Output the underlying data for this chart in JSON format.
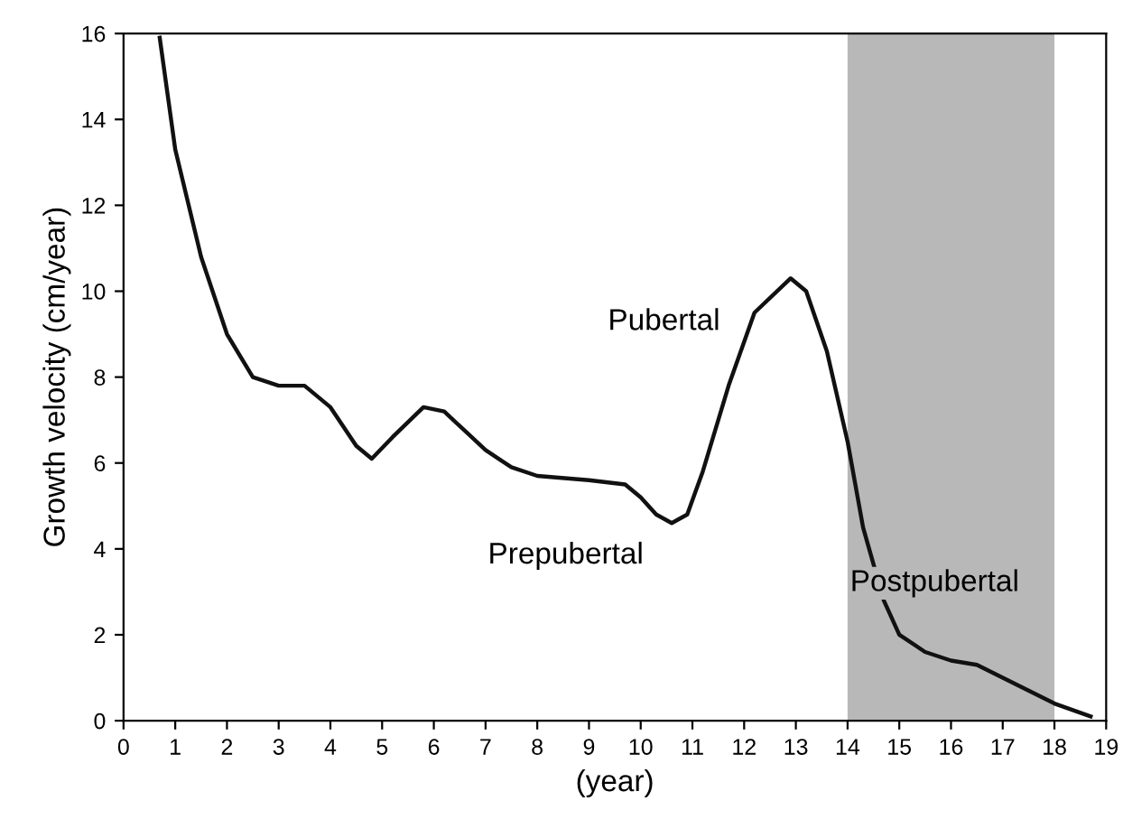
{
  "chart_data": {
    "type": "line",
    "xlabel": "(year)",
    "ylabel": "Growth velocity (cm/year)",
    "x": [
      0.7,
      1,
      1.5,
      2,
      2.5,
      3,
      3.5,
      4,
      4.5,
      4.8,
      5.2,
      5.8,
      6.2,
      7,
      7.5,
      8,
      9,
      9.7,
      10,
      10.3,
      10.6,
      10.9,
      11.2,
      11.7,
      12.2,
      12.9,
      13.2,
      13.6,
      14,
      14.3,
      14.7,
      15,
      15.5,
      16,
      16.5,
      17,
      17.5,
      18,
      18.7
    ],
    "series": [
      {
        "color": "#111111",
        "values": [
          15.9,
          13.3,
          10.8,
          9.0,
          8.0,
          7.8,
          7.8,
          7.3,
          6.4,
          6.1,
          6.6,
          7.3,
          7.2,
          6.3,
          5.9,
          5.7,
          5.6,
          5.5,
          5.2,
          4.8,
          4.6,
          4.8,
          5.8,
          7.8,
          9.5,
          10.3,
          10.0,
          8.6,
          6.5,
          4.5,
          2.8,
          2.0,
          1.6,
          1.4,
          1.3,
          1.0,
          0.7,
          0.4,
          0.1
        ]
      }
    ],
    "xlim": [
      0,
      19
    ],
    "ylim": [
      0,
      16
    ],
    "xticks": [
      0,
      1,
      2,
      3,
      4,
      5,
      6,
      7,
      8,
      9,
      10,
      11,
      12,
      13,
      14,
      15,
      16,
      17,
      18,
      19
    ],
    "yticks": [
      0,
      2,
      4,
      6,
      8,
      10,
      12,
      14,
      16
    ],
    "bands": [
      {
        "axis": "x",
        "from": 14,
        "to": 18,
        "color": "#b8b8b8",
        "label": "Postpubertal"
      }
    ],
    "annotations": [
      "Prepubertal",
      "Pubertal"
    ],
    "grid": false,
    "legend": false,
    "line_style": "solid",
    "marker": "none"
  }
}
